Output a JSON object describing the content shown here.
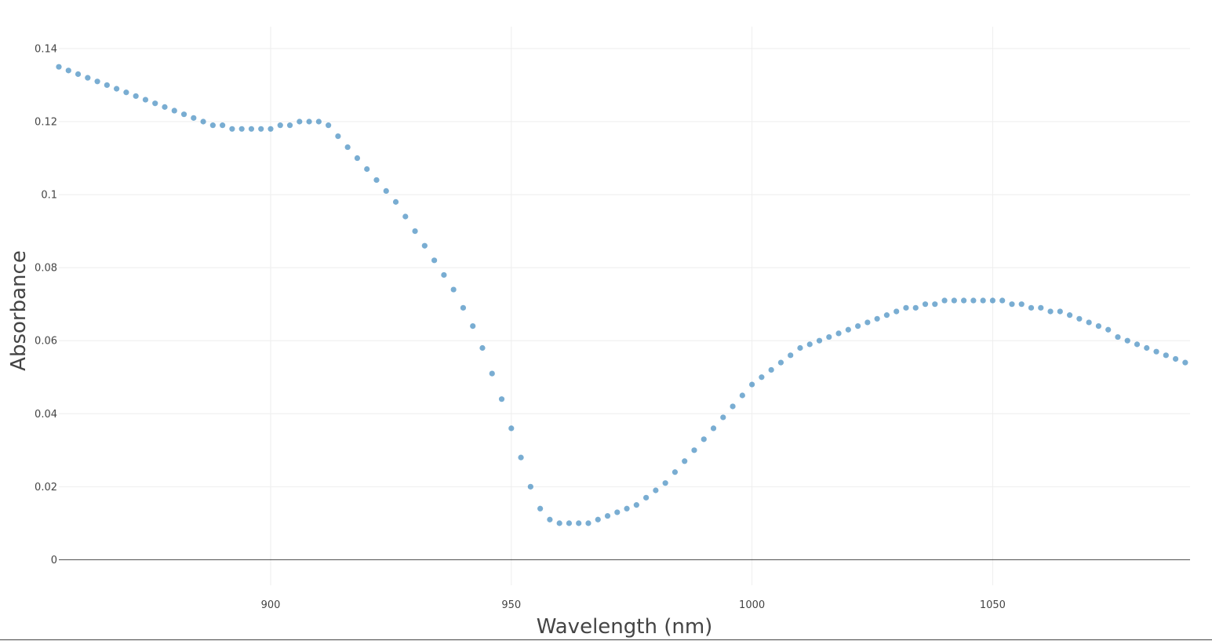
{
  "chart_data": {
    "type": "scatter",
    "title": "",
    "xlabel": "Wavelength (nm)",
    "ylabel": "Absorbance",
    "xlim": [
      856,
      1091
    ],
    "ylim": [
      -0.007,
      0.146
    ],
    "x_ticks": [
      900,
      950,
      1000,
      1050
    ],
    "x_tick_labels": [
      "900",
      "950",
      "1000",
      "1050"
    ],
    "y_ticks": [
      0,
      0.02,
      0.04,
      0.06,
      0.08,
      0.1,
      0.12,
      0.14
    ],
    "y_tick_labels": [
      "0",
      "0.02",
      "0.04",
      "0.06",
      "0.08",
      "0.1",
      "0.12",
      "0.14"
    ],
    "grid": true,
    "marker_color": "#1f77b4",
    "marker_opacity": 0.6,
    "series": [
      {
        "x": [
          856,
          858,
          860,
          862,
          864,
          866,
          868,
          870,
          872,
          874,
          876,
          878,
          880,
          882,
          884,
          886,
          888,
          890,
          892,
          894,
          896,
          898,
          900,
          902,
          904,
          906,
          908,
          910,
          912,
          914,
          916,
          918,
          920,
          922,
          924,
          926,
          928,
          930,
          932,
          934,
          936,
          938,
          940,
          942,
          944,
          946,
          948,
          950,
          952,
          954,
          956,
          958,
          960,
          962,
          964,
          966,
          968,
          970,
          972,
          974,
          976,
          978,
          980,
          982,
          984,
          986,
          988,
          990,
          992,
          994,
          996,
          998,
          1000,
          1002,
          1004,
          1006,
          1008,
          1010,
          1012,
          1014,
          1016,
          1018,
          1020,
          1022,
          1024,
          1026,
          1028,
          1030,
          1032,
          1034,
          1036,
          1038,
          1040,
          1042,
          1044,
          1046,
          1048,
          1050,
          1052,
          1054,
          1056,
          1058,
          1060,
          1062,
          1064,
          1066,
          1068,
          1070,
          1072,
          1074,
          1076,
          1078,
          1080,
          1082,
          1084,
          1086,
          1088,
          1090
        ],
        "y": [
          0.135,
          0.134,
          0.133,
          0.132,
          0.131,
          0.13,
          0.129,
          0.128,
          0.127,
          0.126,
          0.125,
          0.124,
          0.123,
          0.122,
          0.121,
          0.12,
          0.119,
          0.119,
          0.118,
          0.118,
          0.118,
          0.118,
          0.118,
          0.119,
          0.119,
          0.12,
          0.12,
          0.12,
          0.119,
          0.116,
          0.113,
          0.11,
          0.107,
          0.104,
          0.101,
          0.098,
          0.094,
          0.09,
          0.086,
          0.082,
          0.078,
          0.074,
          0.069,
          0.064,
          0.058,
          0.051,
          0.044,
          0.036,
          0.028,
          0.02,
          0.014,
          0.011,
          0.01,
          0.01,
          0.01,
          0.01,
          0.011,
          0.012,
          0.013,
          0.014,
          0.015,
          0.017,
          0.019,
          0.021,
          0.024,
          0.027,
          0.03,
          0.033,
          0.036,
          0.039,
          0.042,
          0.045,
          0.048,
          0.05,
          0.052,
          0.054,
          0.056,
          0.058,
          0.059,
          0.06,
          0.061,
          0.062,
          0.063,
          0.064,
          0.065,
          0.066,
          0.067,
          0.068,
          0.069,
          0.069,
          0.07,
          0.07,
          0.071,
          0.071,
          0.071,
          0.071,
          0.071,
          0.071,
          0.071,
          0.07,
          0.07,
          0.069,
          0.069,
          0.068,
          0.068,
          0.067,
          0.066,
          0.065,
          0.064,
          0.063,
          0.061,
          0.06,
          0.059,
          0.058,
          0.057,
          0.056,
          0.055,
          0.054
        ]
      }
    ]
  }
}
